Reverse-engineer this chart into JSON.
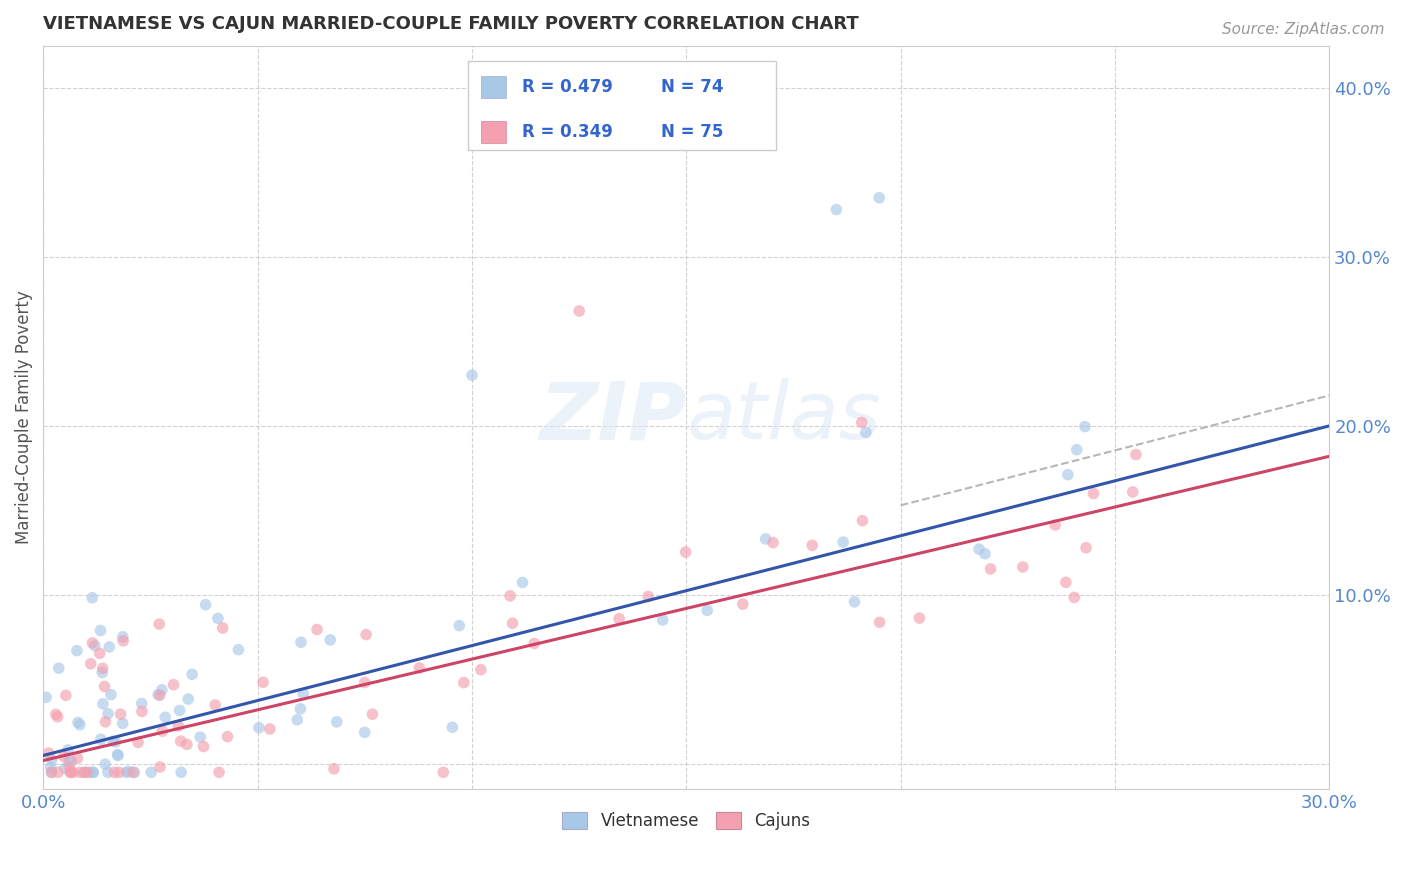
{
  "title": "VIETNAMESE VS CAJUN MARRIED-COUPLE FAMILY POVERTY CORRELATION CHART",
  "source": "Source: ZipAtlas.com",
  "ylabel": "Married-Couple Family Poverty",
  "xlim": [
    0.0,
    0.3
  ],
  "ylim": [
    -0.015,
    0.425
  ],
  "xticks": [
    0.0,
    0.05,
    0.1,
    0.15,
    0.2,
    0.25,
    0.3
  ],
  "xtick_labels": [
    "0.0%",
    "",
    "",
    "",
    "",
    "",
    "30.0%"
  ],
  "ytick_positions": [
    0.0,
    0.1,
    0.2,
    0.3,
    0.4
  ],
  "ytick_labels": [
    "",
    "10.0%",
    "20.0%",
    "30.0%",
    "40.0%"
  ],
  "grid_color": "#cccccc",
  "background_color": "#ffffff",
  "watermark_text": "ZIPatlas",
  "legend_R_viet": "R = 0.479",
  "legend_N_viet": "N = 74",
  "legend_R_cajun": "R = 0.349",
  "legend_N_cajun": "N = 75",
  "viet_color": "#a8c8e8",
  "cajun_color": "#f4a0b0",
  "viet_line_color": "#3355aa",
  "cajun_line_color": "#cc4466",
  "dot_alpha": 0.65,
  "dot_size": 70,
  "viet_intercept": 0.005,
  "viet_slope": 0.65,
  "cajun_intercept": 0.002,
  "cajun_slope": 0.6,
  "gray_line_color": "#aaaaaa"
}
